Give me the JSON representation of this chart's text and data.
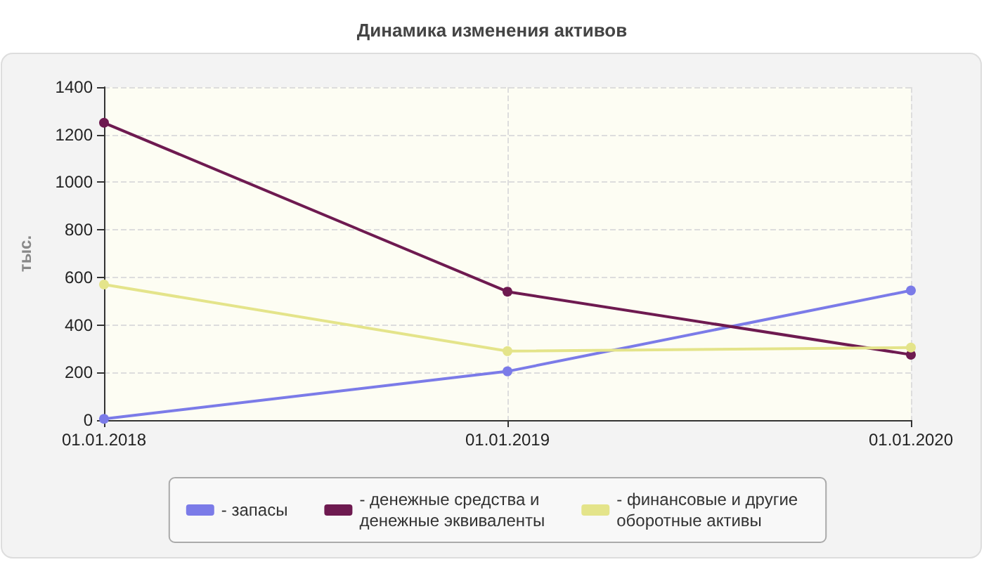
{
  "chart_data": {
    "type": "line",
    "title": "Динамика изменения активов",
    "ylabel": "тыс.",
    "categories": [
      "01.01.2018",
      "01.01.2019",
      "01.01.2020"
    ],
    "series": [
      {
        "name": "- запасы",
        "color": "#7b7be8",
        "values": [
          5,
          205,
          545
        ]
      },
      {
        "name": "- денежные средства и\nденежные эквиваленты",
        "color": "#6e1a50",
        "values": [
          1250,
          540,
          275
        ]
      },
      {
        "name": "- финансовые и другие\nоборотные активы",
        "color": "#e4e48a",
        "values": [
          570,
          290,
          305
        ]
      }
    ],
    "ylim": [
      0,
      1400
    ],
    "yticks": [
      0,
      200,
      400,
      600,
      800,
      1000,
      1200,
      1400
    ],
    "grid": true,
    "legend": "bottom",
    "marker": "circle",
    "line_style": "solid"
  }
}
